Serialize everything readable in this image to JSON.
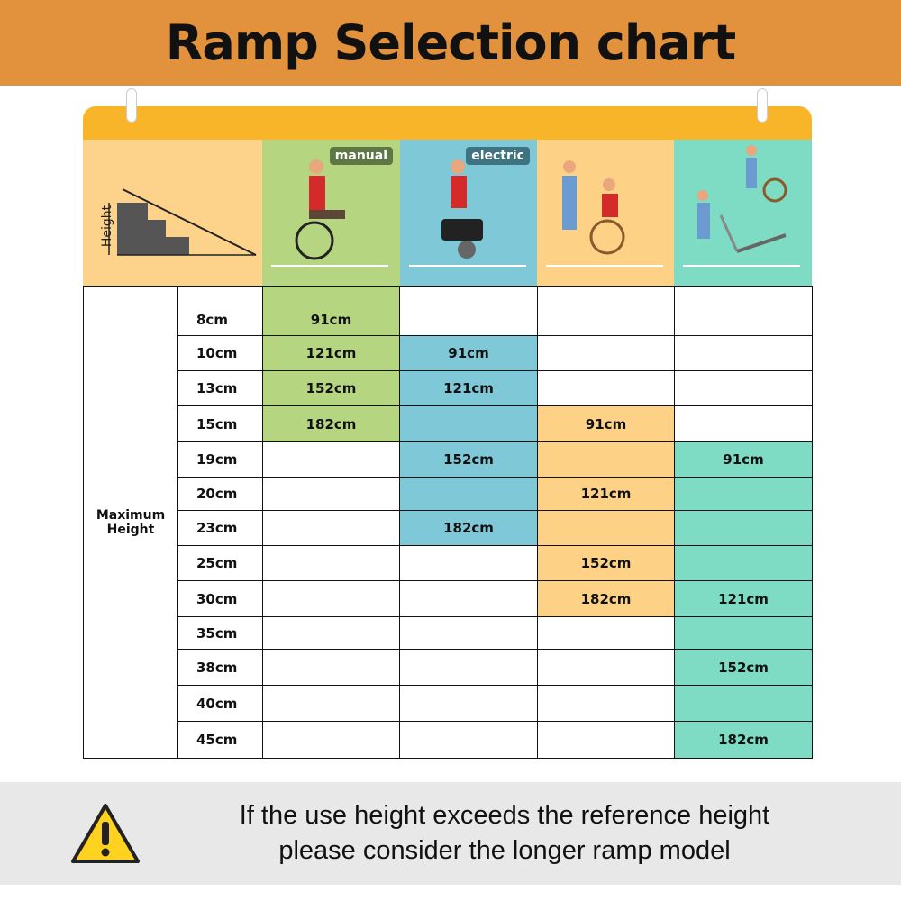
{
  "title": "Ramp Selection chart",
  "header": {
    "diagram_label": "Height",
    "badges": [
      "manual",
      "electric"
    ]
  },
  "colors": {
    "banner": "#E2923C",
    "topbar": "#F8B52A",
    "manual": "#B5D580",
    "electric": "#7EC8D8",
    "assisted": "#FDD287",
    "trolley": "#7EDBC4",
    "diagram_bg": "#FDD28A"
  },
  "chart_data": {
    "type": "table",
    "title": "Ramp Selection chart",
    "row_header": "Maximum Height",
    "columns": [
      {
        "label": "manual",
        "icon": "manual-wheelchair-user",
        "color": "#B5D580",
        "filled_range": [
          "8cm",
          "15cm"
        ]
      },
      {
        "label": "electric",
        "icon": "electric-wheelchair-user",
        "color": "#7EC8D8",
        "filled_range": [
          "10cm",
          "23cm"
        ]
      },
      {
        "label": "",
        "icon": "assisted-wheelchair",
        "color": "#FDD287",
        "filled_range": [
          "15cm",
          "30cm"
        ]
      },
      {
        "label": "",
        "icon": "attendant-with-trolley",
        "color": "#7EDBC4",
        "filled_range": [
          "19cm",
          "45cm"
        ]
      }
    ],
    "rows": [
      {
        "height": "8cm",
        "cells": [
          "91cm",
          "",
          "",
          ""
        ]
      },
      {
        "height": "10cm",
        "cells": [
          "121cm",
          "91cm",
          "",
          ""
        ]
      },
      {
        "height": "13cm",
        "cells": [
          "152cm",
          "121cm",
          "",
          ""
        ]
      },
      {
        "height": "15cm",
        "cells": [
          "182cm",
          "",
          "91cm",
          ""
        ]
      },
      {
        "height": "19cm",
        "cells": [
          "",
          "152cm",
          "",
          "91cm"
        ]
      },
      {
        "height": "20cm",
        "cells": [
          "",
          "",
          "121cm",
          ""
        ]
      },
      {
        "height": "23cm",
        "cells": [
          "",
          "182cm",
          "",
          ""
        ]
      },
      {
        "height": "25cm",
        "cells": [
          "",
          "",
          "152cm",
          ""
        ]
      },
      {
        "height": "30cm",
        "cells": [
          "",
          "",
          "182cm",
          "121cm"
        ]
      },
      {
        "height": "35cm",
        "cells": [
          "",
          "",
          "",
          ""
        ]
      },
      {
        "height": "38cm",
        "cells": [
          "",
          "",
          "",
          "152cm"
        ]
      },
      {
        "height": "40cm",
        "cells": [
          "",
          "",
          "",
          ""
        ]
      },
      {
        "height": "45cm",
        "cells": [
          "",
          "",
          "",
          "182cm"
        ]
      }
    ]
  },
  "footer": {
    "icon": "warning-icon",
    "line1": "If the use height exceeds the reference height",
    "line2": "please consider the longer ramp model"
  }
}
